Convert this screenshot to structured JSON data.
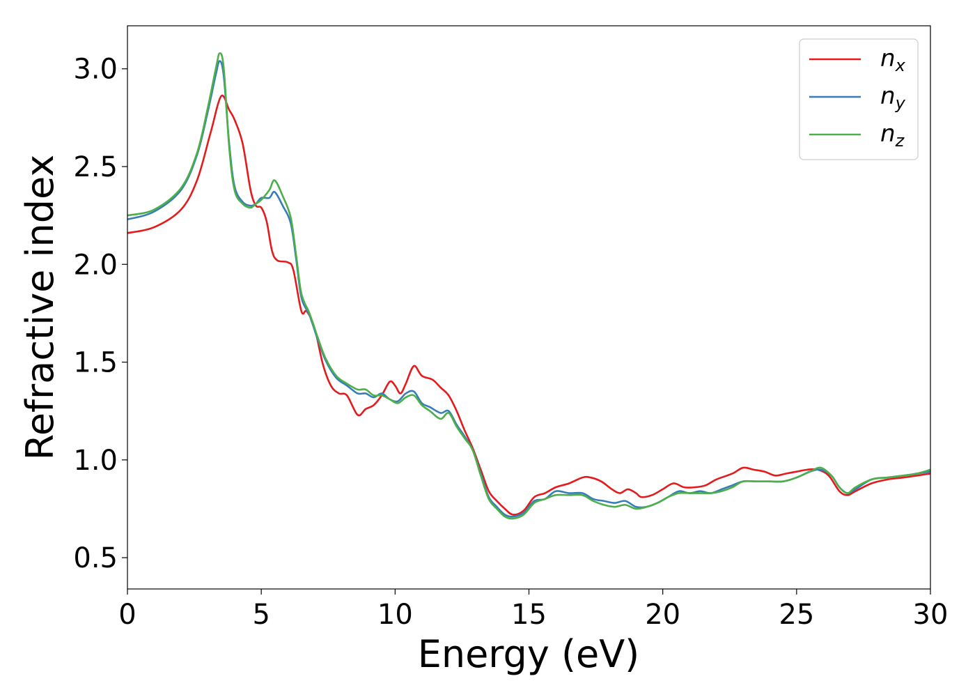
{
  "chart_data": {
    "type": "line",
    "title": "",
    "xlabel": "Energy (eV)",
    "ylabel": "Refractive index",
    "xlim": [
      0,
      30
    ],
    "ylim": [
      0.34,
      3.22
    ],
    "xticks": [
      0,
      5,
      10,
      15,
      20,
      25,
      30
    ],
    "yticks": [
      0.5,
      1.0,
      1.5,
      2.0,
      2.5,
      3.0
    ],
    "xtick_labels": [
      "0",
      "5",
      "10",
      "15",
      "20",
      "25",
      "30"
    ],
    "ytick_labels": [
      "0.5",
      "1.0",
      "1.5",
      "2.0",
      "2.5",
      "3.0"
    ],
    "grid": false,
    "legend_position": "top-right",
    "series": [
      {
        "name": "n_x",
        "label_main": "n",
        "label_sub": "x",
        "color": "#e41a1c",
        "points": [
          [
            0,
            2.16
          ],
          [
            1.0,
            2.19
          ],
          [
            2.0,
            2.28
          ],
          [
            2.6,
            2.43
          ],
          [
            3.1,
            2.67
          ],
          [
            3.5,
            2.86
          ],
          [
            3.8,
            2.79
          ],
          [
            4.0,
            2.74
          ],
          [
            4.3,
            2.62
          ],
          [
            4.6,
            2.38
          ],
          [
            4.8,
            2.3
          ],
          [
            5.0,
            2.29
          ],
          [
            5.2,
            2.22
          ],
          [
            5.4,
            2.07
          ],
          [
            5.6,
            2.02
          ],
          [
            6.0,
            2.01
          ],
          [
            6.2,
            1.97
          ],
          [
            6.5,
            1.76
          ],
          [
            6.7,
            1.76
          ],
          [
            7.0,
            1.67
          ],
          [
            7.3,
            1.49
          ],
          [
            7.6,
            1.38
          ],
          [
            7.9,
            1.34
          ],
          [
            8.2,
            1.33
          ],
          [
            8.6,
            1.23
          ],
          [
            8.9,
            1.26
          ],
          [
            9.2,
            1.28
          ],
          [
            9.5,
            1.33
          ],
          [
            9.8,
            1.4
          ],
          [
            10.0,
            1.38
          ],
          [
            10.2,
            1.34
          ],
          [
            10.4,
            1.39
          ],
          [
            10.7,
            1.48
          ],
          [
            11.0,
            1.43
          ],
          [
            11.4,
            1.41
          ],
          [
            11.7,
            1.37
          ],
          [
            12.0,
            1.33
          ],
          [
            12.3,
            1.25
          ],
          [
            12.6,
            1.15
          ],
          [
            12.9,
            1.06
          ],
          [
            13.2,
            0.95
          ],
          [
            13.5,
            0.84
          ],
          [
            13.8,
            0.79
          ],
          [
            14.1,
            0.75
          ],
          [
            14.4,
            0.72
          ],
          [
            14.8,
            0.74
          ],
          [
            15.2,
            0.81
          ],
          [
            15.6,
            0.83
          ],
          [
            16.0,
            0.86
          ],
          [
            16.5,
            0.88
          ],
          [
            17.0,
            0.91
          ],
          [
            17.3,
            0.91
          ],
          [
            17.7,
            0.89
          ],
          [
            18.1,
            0.85
          ],
          [
            18.4,
            0.83
          ],
          [
            18.7,
            0.85
          ],
          [
            19.0,
            0.83
          ],
          [
            19.2,
            0.81
          ],
          [
            19.6,
            0.82
          ],
          [
            20.0,
            0.85
          ],
          [
            20.4,
            0.88
          ],
          [
            20.8,
            0.86
          ],
          [
            21.2,
            0.86
          ],
          [
            21.6,
            0.87
          ],
          [
            22.0,
            0.9
          ],
          [
            22.6,
            0.93
          ],
          [
            23.0,
            0.96
          ],
          [
            23.4,
            0.95
          ],
          [
            23.8,
            0.94
          ],
          [
            24.2,
            0.92
          ],
          [
            24.6,
            0.93
          ],
          [
            25.0,
            0.94
          ],
          [
            25.4,
            0.95
          ],
          [
            25.8,
            0.95
          ],
          [
            26.2,
            0.92
          ],
          [
            26.6,
            0.84
          ],
          [
            26.9,
            0.82
          ],
          [
            27.2,
            0.84
          ],
          [
            27.8,
            0.88
          ],
          [
            28.4,
            0.9
          ],
          [
            29.0,
            0.91
          ],
          [
            29.5,
            0.92
          ],
          [
            30.0,
            0.93
          ]
        ]
      },
      {
        "name": "n_y",
        "label_main": "n",
        "label_sub": "y",
        "color": "#377eb8",
        "points": [
          [
            0,
            2.23
          ],
          [
            1.0,
            2.27
          ],
          [
            2.0,
            2.38
          ],
          [
            2.6,
            2.56
          ],
          [
            3.0,
            2.78
          ],
          [
            3.3,
            2.97
          ],
          [
            3.45,
            3.04
          ],
          [
            3.6,
            2.96
          ],
          [
            3.8,
            2.62
          ],
          [
            4.0,
            2.4
          ],
          [
            4.3,
            2.32
          ],
          [
            4.6,
            2.3
          ],
          [
            4.8,
            2.31
          ],
          [
            5.0,
            2.34
          ],
          [
            5.3,
            2.34
          ],
          [
            5.5,
            2.37
          ],
          [
            5.8,
            2.3
          ],
          [
            6.1,
            2.21
          ],
          [
            6.3,
            2.03
          ],
          [
            6.5,
            1.83
          ],
          [
            6.8,
            1.74
          ],
          [
            7.1,
            1.62
          ],
          [
            7.4,
            1.51
          ],
          [
            7.8,
            1.42
          ],
          [
            8.2,
            1.38
          ],
          [
            8.6,
            1.34
          ],
          [
            8.9,
            1.34
          ],
          [
            9.2,
            1.32
          ],
          [
            9.5,
            1.34
          ],
          [
            9.8,
            1.31
          ],
          [
            10.1,
            1.3
          ],
          [
            10.4,
            1.34
          ],
          [
            10.7,
            1.35
          ],
          [
            11.0,
            1.29
          ],
          [
            11.3,
            1.27
          ],
          [
            11.7,
            1.24
          ],
          [
            12.0,
            1.25
          ],
          [
            12.3,
            1.18
          ],
          [
            12.6,
            1.12
          ],
          [
            12.9,
            1.05
          ],
          [
            13.2,
            0.93
          ],
          [
            13.5,
            0.81
          ],
          [
            13.8,
            0.76
          ],
          [
            14.1,
            0.72
          ],
          [
            14.4,
            0.71
          ],
          [
            14.8,
            0.73
          ],
          [
            15.2,
            0.79
          ],
          [
            15.6,
            0.8
          ],
          [
            16.0,
            0.84
          ],
          [
            16.5,
            0.83
          ],
          [
            17.0,
            0.83
          ],
          [
            17.4,
            0.8
          ],
          [
            17.8,
            0.79
          ],
          [
            18.2,
            0.78
          ],
          [
            18.6,
            0.79
          ],
          [
            19.0,
            0.76
          ],
          [
            19.4,
            0.76
          ],
          [
            19.8,
            0.78
          ],
          [
            20.2,
            0.81
          ],
          [
            20.6,
            0.84
          ],
          [
            21.0,
            0.83
          ],
          [
            21.4,
            0.84
          ],
          [
            21.8,
            0.83
          ],
          [
            22.2,
            0.85
          ],
          [
            22.6,
            0.87
          ],
          [
            23.0,
            0.89
          ],
          [
            23.5,
            0.89
          ],
          [
            24.0,
            0.89
          ],
          [
            24.5,
            0.89
          ],
          [
            25.0,
            0.91
          ],
          [
            25.5,
            0.94
          ],
          [
            25.9,
            0.95
          ],
          [
            26.3,
            0.92
          ],
          [
            26.6,
            0.86
          ],
          [
            26.9,
            0.83
          ],
          [
            27.2,
            0.85
          ],
          [
            27.8,
            0.9
          ],
          [
            28.4,
            0.91
          ],
          [
            29.0,
            0.92
          ],
          [
            29.5,
            0.93
          ],
          [
            30.0,
            0.94
          ]
        ]
      },
      {
        "name": "n_z",
        "label_main": "n",
        "label_sub": "z",
        "color": "#4daf4a",
        "points": [
          [
            0,
            2.25
          ],
          [
            1.0,
            2.28
          ],
          [
            2.0,
            2.39
          ],
          [
            2.6,
            2.57
          ],
          [
            3.0,
            2.8
          ],
          [
            3.3,
            3.0
          ],
          [
            3.45,
            3.08
          ],
          [
            3.6,
            3.0
          ],
          [
            3.8,
            2.6
          ],
          [
            4.0,
            2.38
          ],
          [
            4.3,
            2.31
          ],
          [
            4.6,
            2.29
          ],
          [
            4.8,
            2.31
          ],
          [
            5.0,
            2.33
          ],
          [
            5.3,
            2.38
          ],
          [
            5.5,
            2.43
          ],
          [
            5.8,
            2.35
          ],
          [
            6.1,
            2.24
          ],
          [
            6.3,
            2.05
          ],
          [
            6.5,
            1.85
          ],
          [
            6.8,
            1.75
          ],
          [
            7.1,
            1.63
          ],
          [
            7.4,
            1.52
          ],
          [
            7.8,
            1.43
          ],
          [
            8.2,
            1.39
          ],
          [
            8.6,
            1.36
          ],
          [
            8.9,
            1.36
          ],
          [
            9.2,
            1.33
          ],
          [
            9.5,
            1.33
          ],
          [
            9.8,
            1.31
          ],
          [
            10.1,
            1.29
          ],
          [
            10.4,
            1.32
          ],
          [
            10.7,
            1.33
          ],
          [
            11.0,
            1.28
          ],
          [
            11.3,
            1.25
          ],
          [
            11.7,
            1.21
          ],
          [
            12.0,
            1.24
          ],
          [
            12.3,
            1.17
          ],
          [
            12.6,
            1.11
          ],
          [
            12.9,
            1.05
          ],
          [
            13.2,
            0.92
          ],
          [
            13.5,
            0.8
          ],
          [
            13.8,
            0.75
          ],
          [
            14.1,
            0.71
          ],
          [
            14.4,
            0.7
          ],
          [
            14.8,
            0.72
          ],
          [
            15.2,
            0.78
          ],
          [
            15.6,
            0.8
          ],
          [
            16.0,
            0.82
          ],
          [
            16.5,
            0.82
          ],
          [
            17.0,
            0.82
          ],
          [
            17.4,
            0.79
          ],
          [
            17.8,
            0.77
          ],
          [
            18.2,
            0.76
          ],
          [
            18.6,
            0.77
          ],
          [
            19.0,
            0.75
          ],
          [
            19.4,
            0.76
          ],
          [
            19.8,
            0.78
          ],
          [
            20.2,
            0.81
          ],
          [
            20.6,
            0.83
          ],
          [
            21.0,
            0.83
          ],
          [
            21.4,
            0.83
          ],
          [
            21.8,
            0.83
          ],
          [
            22.2,
            0.84
          ],
          [
            22.6,
            0.86
          ],
          [
            23.0,
            0.89
          ],
          [
            23.5,
            0.89
          ],
          [
            24.0,
            0.89
          ],
          [
            24.5,
            0.89
          ],
          [
            25.0,
            0.91
          ],
          [
            25.5,
            0.94
          ],
          [
            25.9,
            0.96
          ],
          [
            26.3,
            0.92
          ],
          [
            26.6,
            0.86
          ],
          [
            26.9,
            0.83
          ],
          [
            27.2,
            0.86
          ],
          [
            27.8,
            0.9
          ],
          [
            28.4,
            0.91
          ],
          [
            29.0,
            0.92
          ],
          [
            29.5,
            0.93
          ],
          [
            30.0,
            0.95
          ]
        ]
      }
    ]
  }
}
